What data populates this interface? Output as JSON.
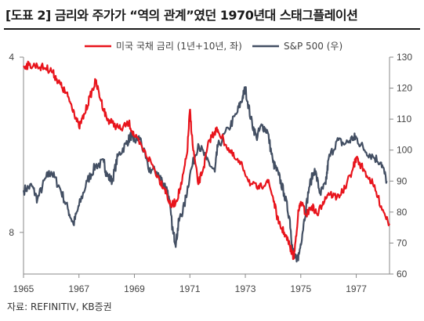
{
  "title": "[도표 2] 금리와 주가가 “역의 관계”였던 1970년대 스태그플레이션",
  "source": "자료: REFINITIV, KB증권",
  "chart_data": {
    "type": "line",
    "title": "[도표 2] 금리와 주가가 “역의 관계”였던 1970년대 스태그플레이션",
    "xlabel": "",
    "ylabel_left": "",
    "ylabel_right": "",
    "x_ticks": [
      "1965",
      "1967",
      "1969",
      "1971",
      "1973",
      "1975",
      "1977"
    ],
    "xlim": [
      1965,
      1978.2
    ],
    "y_left": {
      "ticks": [
        "4",
        "8"
      ],
      "tick_values": [
        4,
        8
      ],
      "lim": [
        4,
        8.95
      ],
      "inverted": true
    },
    "y_right": {
      "ticks": [
        "130",
        "120",
        "110",
        "100",
        "90",
        "80",
        "70",
        "60"
      ],
      "tick_values": [
        130,
        120,
        110,
        100,
        90,
        80,
        70,
        60
      ],
      "lim": [
        60,
        130
      ]
    },
    "grid": false,
    "legend_position": "top",
    "series": [
      {
        "name": "미국 국채 금리 (1년+10년, 좌)",
        "axis": "left",
        "color": "#e8141c",
        "points": [
          [
            1965.0,
            4.2
          ],
          [
            1965.2,
            4.18
          ],
          [
            1965.5,
            4.2
          ],
          [
            1965.8,
            4.25
          ],
          [
            1966.0,
            4.3
          ],
          [
            1966.2,
            4.5
          ],
          [
            1966.4,
            4.7
          ],
          [
            1966.6,
            4.9
          ],
          [
            1966.8,
            5.2
          ],
          [
            1967.0,
            5.6
          ],
          [
            1967.2,
            5.3
          ],
          [
            1967.4,
            4.9
          ],
          [
            1967.6,
            4.55
          ],
          [
            1967.8,
            5.0
          ],
          [
            1968.0,
            5.4
          ],
          [
            1968.2,
            5.5
          ],
          [
            1968.5,
            5.65
          ],
          [
            1968.8,
            5.5
          ],
          [
            1969.0,
            5.8
          ],
          [
            1969.3,
            6.1
          ],
          [
            1969.6,
            6.4
          ],
          [
            1969.9,
            6.8
          ],
          [
            1970.1,
            7.0
          ],
          [
            1970.3,
            7.4
          ],
          [
            1970.5,
            7.3
          ],
          [
            1970.7,
            6.9
          ],
          [
            1970.9,
            6.2
          ],
          [
            1971.0,
            5.2
          ],
          [
            1971.1,
            6.0
          ],
          [
            1971.3,
            6.9
          ],
          [
            1971.5,
            6.5
          ],
          [
            1971.7,
            5.9
          ],
          [
            1971.9,
            5.7
          ],
          [
            1972.0,
            5.65
          ],
          [
            1972.3,
            6.0
          ],
          [
            1972.6,
            6.3
          ],
          [
            1972.9,
            6.5
          ],
          [
            1973.2,
            6.9
          ],
          [
            1973.5,
            7.0
          ],
          [
            1973.8,
            6.8
          ],
          [
            1974.0,
            7.2
          ],
          [
            1974.2,
            7.8
          ],
          [
            1974.4,
            8.0
          ],
          [
            1974.6,
            8.3
          ],
          [
            1974.75,
            8.6
          ],
          [
            1974.9,
            7.6
          ],
          [
            1975.0,
            7.3
          ],
          [
            1975.2,
            7.6
          ],
          [
            1975.4,
            7.4
          ],
          [
            1975.6,
            7.6
          ],
          [
            1975.8,
            7.3
          ],
          [
            1976.0,
            7.1
          ],
          [
            1976.3,
            7.2
          ],
          [
            1976.6,
            7.0
          ],
          [
            1976.9,
            6.5
          ],
          [
            1977.0,
            6.3
          ],
          [
            1977.3,
            6.6
          ],
          [
            1977.6,
            6.9
          ],
          [
            1977.9,
            7.4
          ],
          [
            1978.2,
            7.8
          ]
        ]
      },
      {
        "name": "S&P 500 (우)",
        "axis": "right",
        "color": "#434f63",
        "points": [
          [
            1965.0,
            87
          ],
          [
            1965.3,
            88.5
          ],
          [
            1965.5,
            84
          ],
          [
            1965.8,
            91
          ],
          [
            1966.0,
            93
          ],
          [
            1966.3,
            88
          ],
          [
            1966.6,
            81
          ],
          [
            1966.8,
            76
          ],
          [
            1967.0,
            82
          ],
          [
            1967.3,
            90
          ],
          [
            1967.6,
            95
          ],
          [
            1967.9,
            96
          ],
          [
            1968.0,
            92
          ],
          [
            1968.2,
            90
          ],
          [
            1968.4,
            98
          ],
          [
            1968.7,
            102
          ],
          [
            1968.9,
            105
          ],
          [
            1969.0,
            103
          ],
          [
            1969.2,
            104
          ],
          [
            1969.5,
            94
          ],
          [
            1969.8,
            93
          ],
          [
            1970.0,
            90
          ],
          [
            1970.2,
            87
          ],
          [
            1970.4,
            73
          ],
          [
            1970.5,
            70
          ],
          [
            1970.6,
            77
          ],
          [
            1970.8,
            82
          ],
          [
            1971.0,
            92
          ],
          [
            1971.3,
            102
          ],
          [
            1971.6,
            97
          ],
          [
            1971.9,
            93
          ],
          [
            1972.0,
            101
          ],
          [
            1972.4,
            107
          ],
          [
            1972.7,
            112
          ],
          [
            1972.9,
            117
          ],
          [
            1973.0,
            120
          ],
          [
            1973.2,
            110
          ],
          [
            1973.4,
            104
          ],
          [
            1973.6,
            108
          ],
          [
            1973.8,
            106
          ],
          [
            1974.0,
            96
          ],
          [
            1974.2,
            92
          ],
          [
            1974.4,
            86
          ],
          [
            1974.6,
            78
          ],
          [
            1974.7,
            68
          ],
          [
            1974.85,
            64
          ],
          [
            1974.95,
            67
          ],
          [
            1975.1,
            76
          ],
          [
            1975.3,
            88
          ],
          [
            1975.5,
            94
          ],
          [
            1975.7,
            86
          ],
          [
            1975.9,
            89
          ],
          [
            1976.0,
            97
          ],
          [
            1976.3,
            103
          ],
          [
            1976.6,
            102
          ],
          [
            1976.9,
            104
          ],
          [
            1977.0,
            104
          ],
          [
            1977.3,
            100
          ],
          [
            1977.6,
            98
          ],
          [
            1977.9,
            96
          ],
          [
            1978.1,
            90
          ]
        ]
      }
    ]
  }
}
